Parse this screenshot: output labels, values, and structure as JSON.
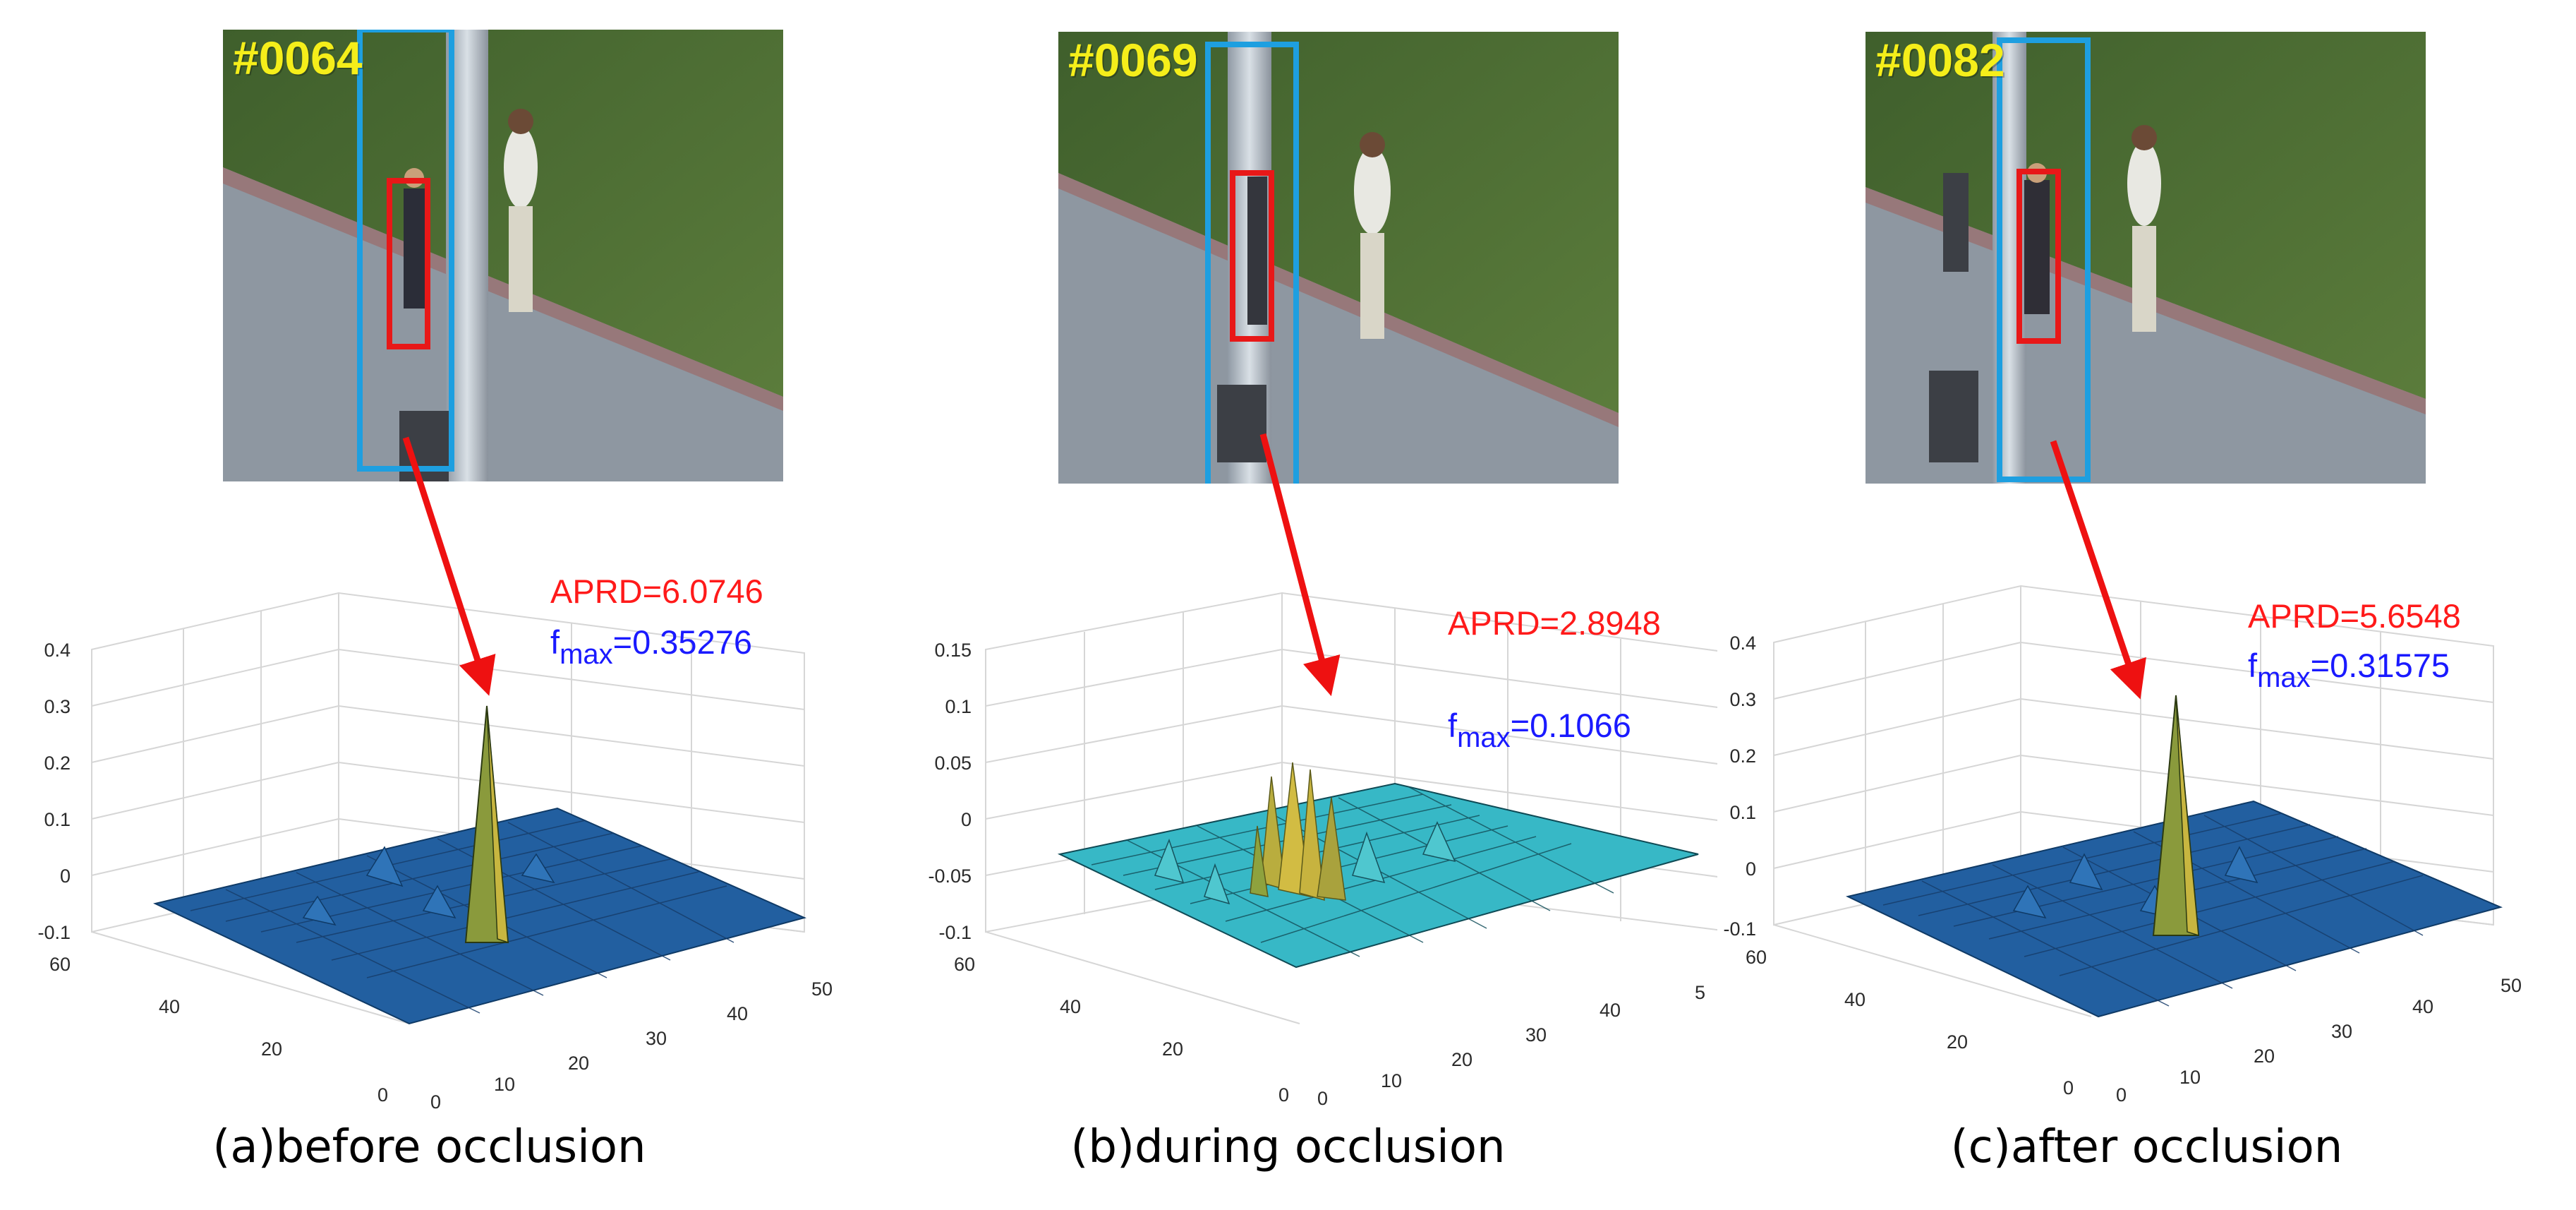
{
  "panels": [
    {
      "frame_label": "#0064",
      "aprd": "APRD=6.0746",
      "fmax_prefix": "f",
      "fmax_sub": "max",
      "fmax_value": "=0.35276",
      "caption": "(a)before occlusion",
      "z_ticks": [
        "0.4",
        "0.3",
        "0.2",
        "0.1",
        "0",
        "-0.1"
      ],
      "y_ticks": [
        "60",
        "40",
        "20",
        "0"
      ],
      "x_ticks": [
        "0",
        "10",
        "20",
        "30",
        "40",
        "50"
      ]
    },
    {
      "frame_label": "#0069",
      "aprd": "APRD=2.8948",
      "fmax_prefix": "f",
      "fmax_sub": "max",
      "fmax_value": "=0.1066",
      "caption": "(b)during occlusion",
      "z_ticks": [
        "0.15",
        "0.1",
        "0.05",
        "0",
        "-0.05",
        "-0.1"
      ],
      "y_ticks": [
        "60",
        "40",
        "20",
        "0"
      ],
      "x_ticks": [
        "0",
        "10",
        "20",
        "30",
        "40",
        "5"
      ]
    },
    {
      "frame_label": "#0082",
      "aprd": "APRD=5.6548",
      "fmax_prefix": "f",
      "fmax_sub": "max",
      "fmax_value": "=0.31575",
      "caption": "(c)after occlusion",
      "z_ticks": [
        "0.4",
        "0.3",
        "0.2",
        "0.1",
        "0",
        "-0.1"
      ],
      "y_ticks": [
        "60",
        "40",
        "20",
        "0"
      ],
      "x_ticks": [
        "0",
        "10",
        "20",
        "30",
        "40",
        "50"
      ]
    }
  ],
  "colors": {
    "tracker_box_blue": "#1e9fe0",
    "target_box_red": "#e81818",
    "arrow_red": "#ee1111",
    "surface_low": "#1f5fa8",
    "surface_high": "#e0c23a",
    "grass": "#4b6e34",
    "road": "#8d96a0"
  }
}
